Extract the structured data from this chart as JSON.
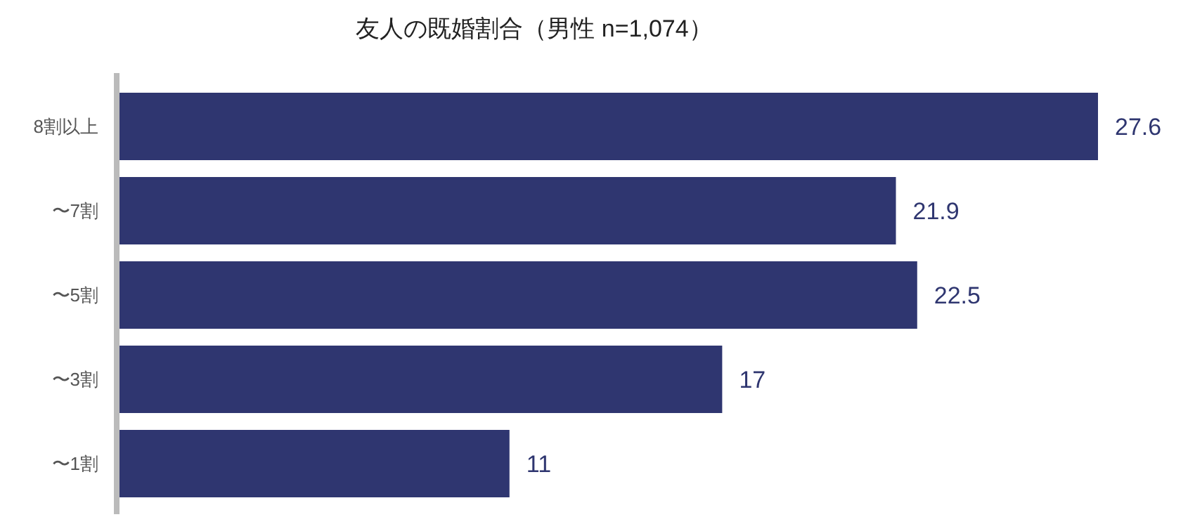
{
  "chart_data": {
    "type": "bar",
    "title": "友人の既婚割合（男性 n=1,074）",
    "orientation": "horizontal",
    "categories": [
      "8割以上",
      "〜7割",
      "〜5割",
      "〜3割",
      "〜1割"
    ],
    "values": [
      27.6,
      21.9,
      22.5,
      17,
      11
    ],
    "color": "#2f3670",
    "data_labels": true
  }
}
